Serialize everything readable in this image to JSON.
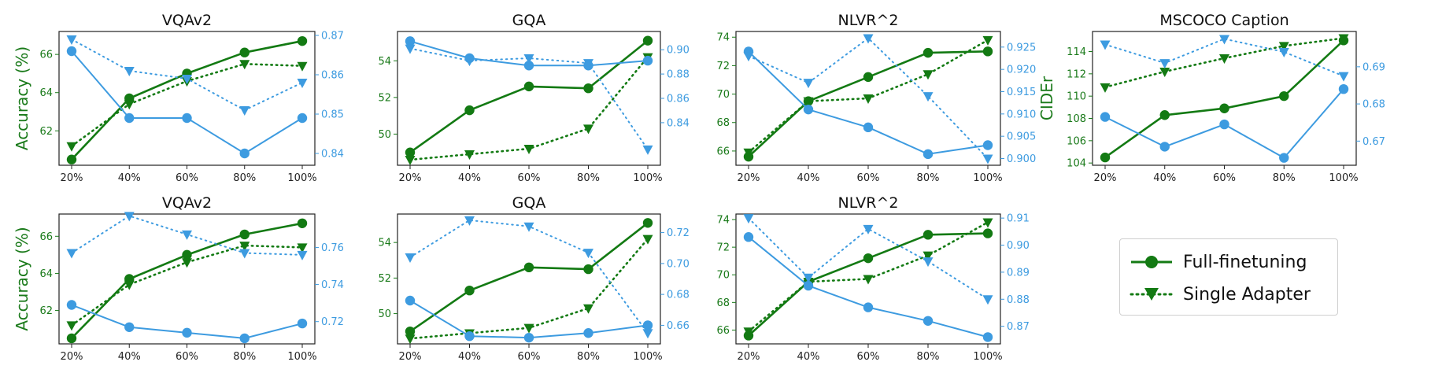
{
  "colors": {
    "full_finetuning": "#137a13",
    "single_adapter": "#3d9be0"
  },
  "legend": {
    "full_finetuning": "Full-finetuning",
    "single_adapter": "Single Adapter"
  },
  "chart_data": [
    {
      "type": "line",
      "title": "VQAv2",
      "ylabel": "Accuracy (%)",
      "y2label": "",
      "categories": [
        "20%",
        "40%",
        "60%",
        "80%",
        "100%"
      ],
      "ylim": [
        60.2,
        67.2
      ],
      "yticks": [
        62,
        64,
        66
      ],
      "y2lim": [
        0.837,
        0.871
      ],
      "y2ticks": [
        0.84,
        0.85,
        0.86,
        0.87
      ],
      "series": [
        {
          "name": "Full-finetuning",
          "axis": "left",
          "color": "green",
          "style": "solid",
          "marker": "circle",
          "values": [
            60.5,
            63.7,
            65.0,
            66.1,
            66.7
          ]
        },
        {
          "name": "Single Adapter",
          "axis": "left",
          "color": "green",
          "style": "dotted",
          "marker": "triangle",
          "values": [
            61.2,
            63.4,
            64.6,
            65.5,
            65.4
          ]
        },
        {
          "name": "Full-finetuning",
          "axis": "right",
          "color": "blue",
          "style": "solid",
          "marker": "circle",
          "values": [
            0.866,
            0.849,
            0.849,
            0.84,
            0.849
          ]
        },
        {
          "name": "Single Adapter",
          "axis": "right",
          "color": "blue",
          "style": "dotted",
          "marker": "triangle",
          "values": [
            0.869,
            0.861,
            0.859,
            0.851,
            0.858
          ]
        }
      ]
    },
    {
      "type": "line",
      "title": "GQA",
      "ylabel": "",
      "y2label": "",
      "categories": [
        "20%",
        "40%",
        "60%",
        "80%",
        "100%"
      ],
      "ylim": [
        48.3,
        55.6
      ],
      "yticks": [
        50,
        52,
        54
      ],
      "y2lim": [
        0.805,
        0.915
      ],
      "y2ticks": [
        0.84,
        0.86,
        0.88,
        0.9
      ],
      "series": [
        {
          "name": "Full-finetuning",
          "axis": "left",
          "color": "green",
          "style": "solid",
          "marker": "circle",
          "values": [
            49.0,
            51.3,
            52.6,
            52.5,
            55.1
          ]
        },
        {
          "name": "Single Adapter",
          "axis": "left",
          "color": "green",
          "style": "dotted",
          "marker": "triangle",
          "values": [
            48.6,
            48.9,
            49.2,
            50.3,
            54.2
          ]
        },
        {
          "name": "Full-finetuning",
          "axis": "right",
          "color": "blue",
          "style": "solid",
          "marker": "circle",
          "values": [
            0.907,
            0.893,
            0.887,
            0.887,
            0.891
          ]
        },
        {
          "name": "Single Adapter",
          "axis": "right",
          "color": "blue",
          "style": "dotted",
          "marker": "triangle",
          "values": [
            0.901,
            0.891,
            0.893,
            0.889,
            0.818
          ]
        }
      ]
    },
    {
      "type": "line",
      "title": "NLVR^2",
      "ylabel": "",
      "y2label": "CIDEr",
      "categories": [
        "20%",
        "40%",
        "60%",
        "80%",
        "100%"
      ],
      "ylim": [
        65.0,
        74.4
      ],
      "yticks": [
        66,
        68,
        70,
        72,
        74
      ],
      "y2lim": [
        0.8985,
        0.9285
      ],
      "y2ticks": [
        0.9,
        0.905,
        0.91,
        0.915,
        0.92,
        0.925
      ],
      "series": [
        {
          "name": "Full-finetuning",
          "axis": "left",
          "color": "green",
          "style": "solid",
          "marker": "circle",
          "values": [
            65.6,
            69.5,
            71.2,
            72.9,
            73.0
          ]
        },
        {
          "name": "Single Adapter",
          "axis": "left",
          "color": "green",
          "style": "dotted",
          "marker": "triangle",
          "values": [
            65.9,
            69.5,
            69.7,
            71.4,
            73.8
          ]
        },
        {
          "name": "Full-finetuning",
          "axis": "right",
          "color": "blue",
          "style": "solid",
          "marker": "circle",
          "values": [
            0.924,
            0.911,
            0.907,
            0.901,
            0.903
          ]
        },
        {
          "name": "Single Adapter",
          "axis": "right",
          "color": "blue",
          "style": "dotted",
          "marker": "triangle",
          "values": [
            0.923,
            0.917,
            0.927,
            0.914,
            0.9
          ]
        }
      ]
    },
    {
      "type": "line",
      "title": "MSCOCO Caption",
      "ylabel": "",
      "y2label": "",
      "categories": [
        "20%",
        "40%",
        "60%",
        "80%",
        "100%"
      ],
      "ylim": [
        103.8,
        115.8
      ],
      "yticks": [
        104,
        106,
        108,
        110,
        112,
        114
      ],
      "y2lim": [
        0.6635,
        0.6995
      ],
      "y2ticks": [
        0.67,
        0.68,
        0.69
      ],
      "series": [
        {
          "name": "Full-finetuning",
          "axis": "left",
          "color": "green",
          "style": "solid",
          "marker": "circle",
          "values": [
            104.5,
            108.3,
            108.9,
            110.0,
            115.0
          ]
        },
        {
          "name": "Single Adapter",
          "axis": "left",
          "color": "green",
          "style": "dotted",
          "marker": "triangle",
          "values": [
            110.8,
            112.2,
            113.4,
            114.5,
            115.2
          ]
        },
        {
          "name": "Full-finetuning",
          "axis": "right",
          "color": "blue",
          "style": "solid",
          "marker": "circle",
          "values": [
            0.6765,
            0.6685,
            0.6745,
            0.6655,
            0.684
          ]
        },
        {
          "name": "Single Adapter",
          "axis": "right",
          "color": "blue",
          "style": "dotted",
          "marker": "triangle",
          "values": [
            0.696,
            0.691,
            0.6975,
            0.694,
            0.6875
          ]
        }
      ]
    },
    {
      "type": "line",
      "title": "VQAv2",
      "ylabel": "Accuracy (%)",
      "y2label": "",
      "categories": [
        "20%",
        "40%",
        "60%",
        "80%",
        "100%"
      ],
      "ylim": [
        60.2,
        67.2
      ],
      "yticks": [
        62,
        64,
        66
      ],
      "y2lim": [
        0.708,
        0.778
      ],
      "y2ticks": [
        0.72,
        0.74,
        0.76
      ],
      "series": [
        {
          "name": "Full-finetuning",
          "axis": "left",
          "color": "green",
          "style": "solid",
          "marker": "circle",
          "values": [
            60.5,
            63.7,
            65.0,
            66.1,
            66.7
          ]
        },
        {
          "name": "Single Adapter",
          "axis": "left",
          "color": "green",
          "style": "dotted",
          "marker": "triangle",
          "values": [
            61.2,
            63.4,
            64.6,
            65.5,
            65.4
          ]
        },
        {
          "name": "Full-finetuning",
          "axis": "right",
          "color": "blue",
          "style": "solid",
          "marker": "circle",
          "values": [
            0.729,
            0.717,
            0.714,
            0.711,
            0.719
          ]
        },
        {
          "name": "Single Adapter",
          "axis": "right",
          "color": "blue",
          "style": "dotted",
          "marker": "triangle",
          "values": [
            0.757,
            0.777,
            0.767,
            0.757,
            0.756
          ]
        }
      ]
    },
    {
      "type": "line",
      "title": "GQA",
      "ylabel": "",
      "y2label": "",
      "categories": [
        "20%",
        "40%",
        "60%",
        "80%",
        "100%"
      ],
      "ylim": [
        48.3,
        55.6
      ],
      "yticks": [
        50,
        52,
        54
      ],
      "y2lim": [
        0.648,
        0.732
      ],
      "y2ticks": [
        0.66,
        0.68,
        0.7,
        0.72
      ],
      "series": [
        {
          "name": "Full-finetuning",
          "axis": "left",
          "color": "green",
          "style": "solid",
          "marker": "circle",
          "values": [
            49.0,
            51.3,
            52.6,
            52.5,
            55.1
          ]
        },
        {
          "name": "Single Adapter",
          "axis": "left",
          "color": "green",
          "style": "dotted",
          "marker": "triangle",
          "values": [
            48.6,
            48.9,
            49.2,
            50.3,
            54.2
          ]
        },
        {
          "name": "Full-finetuning",
          "axis": "right",
          "color": "blue",
          "style": "solid",
          "marker": "circle",
          "values": [
            0.676,
            0.653,
            0.652,
            0.655,
            0.66
          ]
        },
        {
          "name": "Single Adapter",
          "axis": "right",
          "color": "blue",
          "style": "dotted",
          "marker": "triangle",
          "values": [
            0.704,
            0.728,
            0.724,
            0.707,
            0.655
          ]
        }
      ]
    },
    {
      "type": "line",
      "title": "NLVR^2",
      "ylabel": "",
      "y2label": "",
      "categories": [
        "20%",
        "40%",
        "60%",
        "80%",
        "100%"
      ],
      "ylim": [
        65.0,
        74.4
      ],
      "yticks": [
        66,
        68,
        70,
        72,
        74
      ],
      "y2lim": [
        0.8635,
        0.9115
      ],
      "y2ticks": [
        0.87,
        0.88,
        0.89,
        0.9,
        0.91
      ],
      "series": [
        {
          "name": "Full-finetuning",
          "axis": "left",
          "color": "green",
          "style": "solid",
          "marker": "circle",
          "values": [
            65.6,
            69.5,
            71.2,
            72.9,
            73.0
          ]
        },
        {
          "name": "Single Adapter",
          "axis": "left",
          "color": "green",
          "style": "dotted",
          "marker": "triangle",
          "values": [
            65.9,
            69.5,
            69.7,
            71.4,
            73.8
          ]
        },
        {
          "name": "Full-finetuning",
          "axis": "right",
          "color": "blue",
          "style": "solid",
          "marker": "circle",
          "values": [
            0.903,
            0.885,
            0.877,
            0.872,
            0.866
          ]
        },
        {
          "name": "Single Adapter",
          "axis": "right",
          "color": "blue",
          "style": "dotted",
          "marker": "triangle",
          "values": [
            0.91,
            0.888,
            0.906,
            0.894,
            0.88
          ]
        }
      ]
    }
  ]
}
